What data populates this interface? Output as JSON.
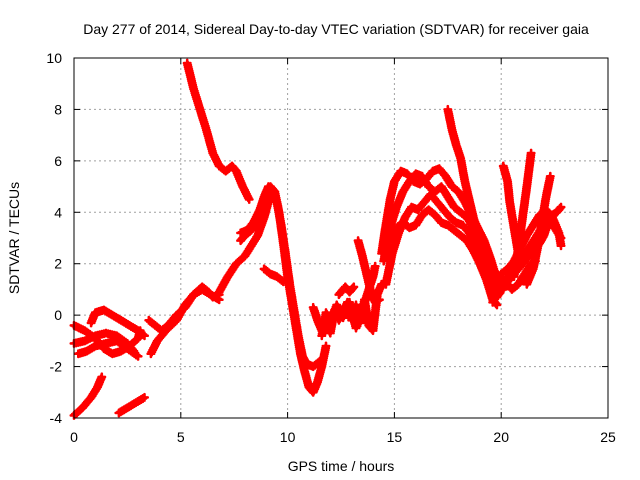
{
  "chart_data": {
    "type": "scatter",
    "title": "Day 277 of 2014, Sidereal Day-to-day VTEC variation (SDTVAR) for receiver gaia",
    "xlabel": "GPS time / hours",
    "ylabel": "SDTVAR / TECUs",
    "xlim": [
      0,
      25
    ],
    "ylim": [
      -4,
      10
    ],
    "x_ticks": [
      "0",
      "5",
      "10",
      "15",
      "20",
      "25"
    ],
    "y_ticks": [
      "-4",
      "-2",
      "0",
      "2",
      "4",
      "6",
      "8",
      "10"
    ],
    "grid": true,
    "marker": "+",
    "color": "#ff0000",
    "series": [
      {
        "points": [
          [
            0,
            -0.4
          ],
          [
            0.5,
            -0.6
          ],
          [
            1.0,
            -0.9
          ],
          [
            1.4,
            -1.3
          ],
          [
            1.8,
            -1.5
          ],
          [
            2.2,
            -1.4
          ],
          [
            2.6,
            -1.2
          ],
          [
            3.0,
            -0.9
          ],
          [
            3.1,
            -0.6
          ]
        ]
      },
      {
        "points": [
          [
            0,
            -1.1
          ],
          [
            0.5,
            -1.0
          ],
          [
            1.0,
            -0.8
          ],
          [
            1.5,
            -0.7
          ],
          [
            2.0,
            -0.8
          ],
          [
            2.5,
            -1.1
          ],
          [
            2.8,
            -1.4
          ]
        ]
      },
      {
        "points": [
          [
            0.2,
            -1.5
          ],
          [
            0.6,
            -1.4
          ],
          [
            1.0,
            -1.2
          ],
          [
            1.5,
            -1.1
          ],
          [
            2.0,
            -1.0
          ],
          [
            2.5,
            -1.3
          ],
          [
            3.0,
            -1.6
          ]
        ]
      },
      {
        "points": [
          [
            0.8,
            -0.3
          ],
          [
            1.0,
            0.1
          ],
          [
            1.4,
            0.2
          ],
          [
            1.8,
            0.0
          ],
          [
            2.2,
            -0.2
          ],
          [
            2.6,
            -0.4
          ],
          [
            3.0,
            -0.6
          ],
          [
            3.3,
            -0.8
          ]
        ]
      },
      {
        "points": [
          [
            0,
            -3.9
          ],
          [
            0.4,
            -3.6
          ],
          [
            0.8,
            -3.2
          ],
          [
            1.1,
            -2.8
          ],
          [
            1.3,
            -2.4
          ]
        ]
      },
      {
        "points": [
          [
            2.1,
            -3.8
          ],
          [
            2.5,
            -3.6
          ],
          [
            2.9,
            -3.4
          ],
          [
            3.3,
            -3.2
          ]
        ]
      },
      {
        "points": [
          [
            3.5,
            -0.2
          ],
          [
            3.8,
            -0.4
          ],
          [
            4.1,
            -0.6
          ],
          [
            4.4,
            -0.4
          ],
          [
            4.8,
            0.0
          ],
          [
            5.2,
            0.3
          ],
          [
            5.6,
            0.8
          ],
          [
            6.0,
            1.1
          ],
          [
            6.3,
            0.9
          ],
          [
            6.5,
            0.7
          ],
          [
            6.8,
            0.8
          ]
        ]
      },
      {
        "points": [
          [
            3.6,
            -1.5
          ],
          [
            3.9,
            -1.0
          ],
          [
            4.3,
            -0.6
          ],
          [
            4.8,
            -0.2
          ],
          [
            5.2,
            0.4
          ],
          [
            5.6,
            0.8
          ],
          [
            6.0,
            1.0
          ],
          [
            6.4,
            0.8
          ],
          [
            6.8,
            0.6
          ]
        ]
      },
      {
        "points": [
          [
            6.8,
            0.9
          ],
          [
            7.2,
            1.5
          ],
          [
            7.6,
            2.0
          ],
          [
            8.0,
            2.3
          ],
          [
            8.3,
            2.7
          ],
          [
            8.6,
            3.1
          ],
          [
            8.9,
            3.8
          ],
          [
            9.1,
            4.4
          ],
          [
            9.2,
            4.9
          ]
        ]
      },
      {
        "points": [
          [
            7.8,
            3.2
          ],
          [
            8.1,
            3.3
          ],
          [
            8.4,
            3.6
          ],
          [
            8.7,
            4.1
          ],
          [
            8.9,
            4.6
          ],
          [
            9.1,
            5.0
          ],
          [
            9.3,
            4.8
          ]
        ]
      },
      {
        "points": [
          [
            5.3,
            9.8
          ],
          [
            5.6,
            8.8
          ],
          [
            5.9,
            8.0
          ],
          [
            6.2,
            7.2
          ],
          [
            6.5,
            6.3
          ],
          [
            6.8,
            5.8
          ],
          [
            7.1,
            5.6
          ],
          [
            7.4,
            5.8
          ],
          [
            7.6,
            5.6
          ],
          [
            7.9,
            5.0
          ],
          [
            8.2,
            4.5
          ]
        ]
      },
      {
        "points": [
          [
            7.8,
            2.9
          ],
          [
            8.0,
            3.1
          ],
          [
            8.3,
            3.3
          ],
          [
            8.6,
            3.6
          ],
          [
            8.9,
            3.9
          ]
        ]
      },
      {
        "points": [
          [
            8.9,
            1.8
          ],
          [
            9.2,
            1.6
          ],
          [
            9.5,
            1.5
          ],
          [
            9.8,
            1.3
          ]
        ]
      },
      {
        "points": [
          [
            9.2,
            5.0
          ],
          [
            9.4,
            4.8
          ],
          [
            9.6,
            4.0
          ],
          [
            9.8,
            2.8
          ],
          [
            10.0,
            1.5
          ],
          [
            10.2,
            0.5
          ],
          [
            10.4,
            -0.5
          ],
          [
            10.6,
            -1.5
          ],
          [
            10.8,
            -2.2
          ],
          [
            11.0,
            -2.8
          ],
          [
            11.2,
            -3.0
          ],
          [
            11.4,
            -2.6
          ],
          [
            11.6,
            -2.0
          ],
          [
            11.8,
            -1.2
          ]
        ]
      },
      {
        "points": [
          [
            9.3,
            4.6
          ],
          [
            9.5,
            4.4
          ],
          [
            9.7,
            3.5
          ],
          [
            9.9,
            2.4
          ],
          [
            10.1,
            1.2
          ],
          [
            10.3,
            0.2
          ],
          [
            10.5,
            -0.8
          ],
          [
            10.7,
            -1.6
          ],
          [
            10.9,
            -1.9
          ],
          [
            11.2,
            -2.0
          ],
          [
            11.5,
            -1.8
          ]
        ]
      },
      {
        "points": [
          [
            11.2,
            0.3
          ],
          [
            11.4,
            -0.2
          ],
          [
            11.6,
            -0.6
          ],
          [
            11.8,
            -0.3
          ],
          [
            12.0,
            -0.7
          ],
          [
            12.2,
            0.2
          ],
          [
            12.4,
            -0.2
          ],
          [
            12.6,
            0.1
          ],
          [
            12.8,
            0.5
          ],
          [
            13.0,
            -0.2
          ],
          [
            13.2,
            0.4
          ],
          [
            13.4,
            -0.3
          ],
          [
            13.6,
            0.6
          ],
          [
            13.8,
            -0.4
          ],
          [
            14.0,
            -0.6
          ],
          [
            14.2,
            0.8
          ],
          [
            14.4,
            1.2
          ]
        ]
      },
      {
        "points": [
          [
            11.6,
            -0.8
          ],
          [
            11.8,
            0.1
          ],
          [
            12.0,
            -0.3
          ],
          [
            12.3,
            0.4
          ],
          [
            12.6,
            -0.1
          ],
          [
            12.9,
            0.5
          ],
          [
            13.2,
            -0.5
          ],
          [
            13.5,
            0.2
          ],
          [
            13.8,
            1.0
          ],
          [
            14.0,
            1.5
          ],
          [
            14.1,
            1.9
          ]
        ]
      },
      {
        "points": [
          [
            12.4,
            0.8
          ],
          [
            12.7,
            1.1
          ],
          [
            12.9,
            0.9
          ],
          [
            13.1,
            1.1
          ]
        ]
      },
      {
        "points": [
          [
            13.3,
            2.9
          ],
          [
            13.5,
            2.3
          ],
          [
            13.7,
            1.6
          ],
          [
            13.9,
            0.9
          ],
          [
            14.1,
            0.5
          ],
          [
            14.3,
            0.6
          ]
        ]
      },
      {
        "points": [
          [
            14.4,
            2.4
          ],
          [
            14.6,
            3.5
          ],
          [
            14.8,
            4.5
          ],
          [
            15.0,
            5.2
          ],
          [
            15.3,
            5.6
          ],
          [
            15.6,
            5.5
          ],
          [
            15.9,
            5.2
          ],
          [
            16.2,
            5.1
          ],
          [
            16.5,
            5.3
          ],
          [
            16.8,
            5.6
          ],
          [
            17.1,
            5.7
          ],
          [
            17.4,
            5.4
          ],
          [
            17.7,
            5.0
          ],
          [
            18.0,
            4.8
          ],
          [
            18.3,
            4.4
          ],
          [
            18.6,
            3.9
          ],
          [
            18.9,
            3.4
          ],
          [
            19.2,
            2.9
          ],
          [
            19.5,
            2.2
          ],
          [
            19.8,
            1.4
          ],
          [
            20.1,
            1.0
          ]
        ]
      },
      {
        "points": [
          [
            14.5,
            2.1
          ],
          [
            14.8,
            3.4
          ],
          [
            15.1,
            4.2
          ],
          [
            15.4,
            4.8
          ],
          [
            15.7,
            5.2
          ],
          [
            16.0,
            5.5
          ],
          [
            16.3,
            5.4
          ],
          [
            16.6,
            5.0
          ],
          [
            16.9,
            4.8
          ],
          [
            17.2,
            5.0
          ],
          [
            17.5,
            4.6
          ],
          [
            17.8,
            4.2
          ],
          [
            18.1,
            4.0
          ],
          [
            18.4,
            3.8
          ],
          [
            18.7,
            3.4
          ],
          [
            19.0,
            2.8
          ],
          [
            19.3,
            2.2
          ],
          [
            19.6,
            1.8
          ],
          [
            19.9,
            1.5
          ]
        ]
      },
      {
        "points": [
          [
            14.6,
            1.2
          ],
          [
            14.9,
            2.4
          ],
          [
            15.2,
            3.2
          ],
          [
            15.5,
            3.8
          ],
          [
            15.8,
            4.2
          ],
          [
            16.1,
            4.1
          ],
          [
            16.4,
            4.4
          ],
          [
            16.7,
            4.7
          ],
          [
            17.0,
            4.4
          ],
          [
            17.3,
            4.1
          ],
          [
            17.6,
            3.8
          ],
          [
            17.9,
            3.6
          ],
          [
            18.2,
            3.5
          ],
          [
            18.5,
            3.2
          ],
          [
            18.8,
            2.8
          ],
          [
            19.1,
            2.3
          ],
          [
            19.4,
            1.6
          ],
          [
            19.7,
            1.0
          ]
        ]
      },
      {
        "points": [
          [
            14.8,
            2.9
          ],
          [
            15.1,
            3.4
          ],
          [
            15.4,
            3.6
          ],
          [
            15.7,
            3.4
          ],
          [
            16.0,
            3.5
          ],
          [
            16.3,
            3.9
          ],
          [
            16.6,
            4.1
          ],
          [
            16.9,
            3.9
          ],
          [
            17.2,
            3.6
          ],
          [
            17.5,
            3.5
          ],
          [
            17.8,
            3.3
          ],
          [
            18.1,
            3.1
          ],
          [
            18.4,
            2.9
          ],
          [
            18.7,
            2.5
          ],
          [
            19.0,
            2.0
          ],
          [
            19.3,
            1.4
          ],
          [
            19.6,
            0.6
          ],
          [
            19.8,
            0.4
          ]
        ]
      },
      {
        "points": [
          [
            17.5,
            8.0
          ],
          [
            17.7,
            7.2
          ],
          [
            17.9,
            6.6
          ],
          [
            18.1,
            6.1
          ],
          [
            18.3,
            5.2
          ],
          [
            18.5,
            4.5
          ],
          [
            18.7,
            3.8
          ],
          [
            18.9,
            3.2
          ],
          [
            19.1,
            2.7
          ],
          [
            19.3,
            2.5
          ]
        ]
      },
      {
        "points": [
          [
            19.6,
            0.5
          ],
          [
            19.9,
            0.9
          ],
          [
            20.2,
            1.2
          ],
          [
            20.5,
            1.5
          ],
          [
            20.8,
            1.8
          ],
          [
            21.1,
            2.1
          ],
          [
            21.4,
            2.4
          ],
          [
            21.6,
            2.6
          ],
          [
            21.8,
            2.8
          ],
          [
            22.0,
            3.1
          ],
          [
            22.2,
            3.6
          ],
          [
            22.4,
            3.9
          ],
          [
            22.6,
            4.0
          ],
          [
            22.8,
            4.2
          ]
        ]
      },
      {
        "points": [
          [
            19.8,
            0.7
          ],
          [
            20.1,
            1.1
          ],
          [
            20.4,
            1.6
          ],
          [
            20.7,
            2.0
          ],
          [
            21.0,
            2.3
          ],
          [
            21.3,
            2.6
          ],
          [
            21.6,
            3.0
          ],
          [
            21.9,
            3.4
          ],
          [
            22.2,
            3.7
          ],
          [
            22.5,
            3.4
          ],
          [
            22.8,
            3.0
          ]
        ]
      },
      {
        "points": [
          [
            20.0,
            1.6
          ],
          [
            20.3,
            1.8
          ],
          [
            20.6,
            2.1
          ],
          [
            20.9,
            2.6
          ],
          [
            21.2,
            3.1
          ],
          [
            21.5,
            3.5
          ],
          [
            21.8,
            3.9
          ],
          [
            22.1,
            4.1
          ],
          [
            22.4,
            3.8
          ],
          [
            22.7,
            3.2
          ],
          [
            22.8,
            2.7
          ]
        ]
      },
      {
        "points": [
          [
            20.6,
            1.5
          ],
          [
            20.8,
            2.6
          ],
          [
            21.0,
            3.8
          ],
          [
            21.2,
            5.0
          ],
          [
            21.4,
            6.3
          ]
        ]
      },
      {
        "points": [
          [
            21.2,
            1.2
          ],
          [
            21.5,
            1.8
          ],
          [
            21.7,
            2.6
          ],
          [
            21.9,
            3.6
          ],
          [
            22.1,
            4.6
          ],
          [
            22.3,
            5.4
          ]
        ]
      },
      {
        "points": [
          [
            20.8,
            2.4
          ],
          [
            20.6,
            3.4
          ],
          [
            20.4,
            4.4
          ],
          [
            20.3,
            5.2
          ],
          [
            20.1,
            5.8
          ]
        ]
      },
      {
        "points": [
          [
            19.9,
            1.5
          ],
          [
            20.2,
            1.3
          ],
          [
            20.5,
            1.0
          ],
          [
            20.8,
            1.2
          ],
          [
            21.1,
            1.6
          ],
          [
            21.4,
            2.0
          ],
          [
            21.6,
            2.1
          ]
        ]
      }
    ]
  }
}
